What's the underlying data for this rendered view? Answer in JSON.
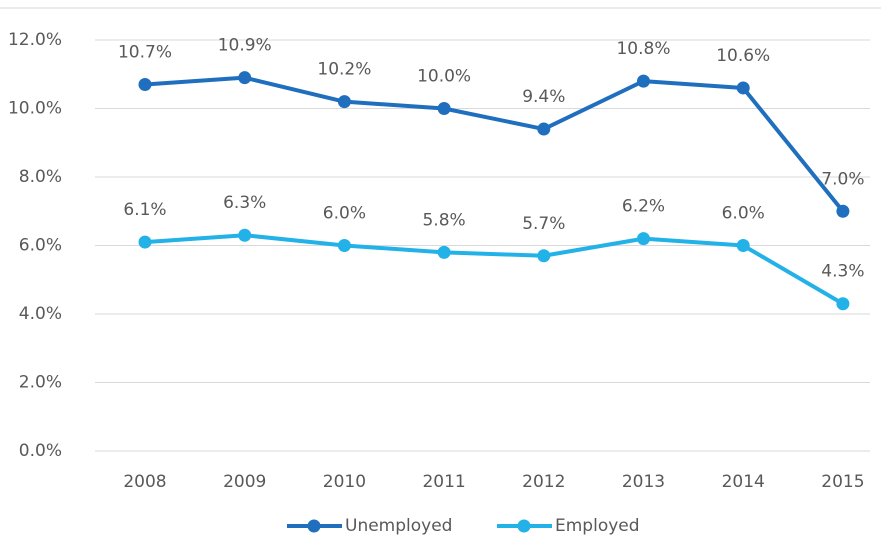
{
  "chart_data": {
    "type": "line",
    "categories": [
      "2008",
      "2009",
      "2010",
      "2011",
      "2012",
      "2013",
      "2014",
      "2015"
    ],
    "series": [
      {
        "name": "Unemployed",
        "color": "#1f6fbe",
        "values": [
          10.7,
          10.9,
          10.2,
          10.0,
          9.4,
          10.8,
          10.6,
          7.0
        ],
        "value_labels": [
          "10.7%",
          "10.9%",
          "10.2%",
          "10.0%",
          "9.4%",
          "10.8%",
          "10.6%",
          "7.0%"
        ]
      },
      {
        "name": "Employed",
        "color": "#22b2e8",
        "values": [
          6.1,
          6.3,
          6.0,
          5.8,
          5.7,
          6.2,
          6.0,
          4.3
        ],
        "value_labels": [
          "6.1%",
          "6.3%",
          "6.0%",
          "5.8%",
          "5.7%",
          "6.2%",
          "6.0%",
          "4.3%"
        ]
      }
    ],
    "ylim": [
      0,
      12
    ],
    "yticks": [
      {
        "value": 0,
        "label": "0.0%"
      },
      {
        "value": 2,
        "label": "2.0%"
      },
      {
        "value": 4,
        "label": "4.0%"
      },
      {
        "value": 6,
        "label": "6.0%"
      },
      {
        "value": 8,
        "label": "8.0%"
      },
      {
        "value": 10,
        "label": "10.0%"
      },
      {
        "value": 12,
        "label": "12.0%"
      }
    ],
    "grid": true
  }
}
